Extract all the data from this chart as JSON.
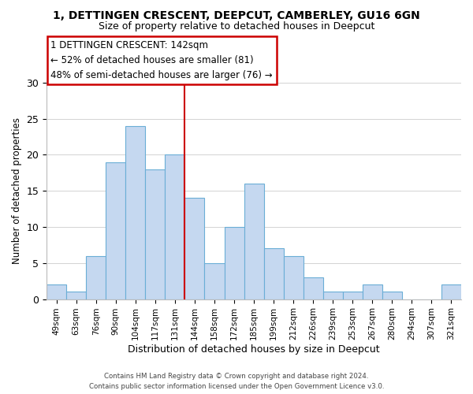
{
  "title": "1, DETTINGEN CRESCENT, DEEPCUT, CAMBERLEY, GU16 6GN",
  "subtitle": "Size of property relative to detached houses in Deepcut",
  "xlabel": "Distribution of detached houses by size in Deepcut",
  "ylabel": "Number of detached properties",
  "bar_color": "#c5d8f0",
  "bar_edge_color": "#6aaed6",
  "categories": [
    "49sqm",
    "63sqm",
    "76sqm",
    "90sqm",
    "104sqm",
    "117sqm",
    "131sqm",
    "144sqm",
    "158sqm",
    "172sqm",
    "185sqm",
    "199sqm",
    "212sqm",
    "226sqm",
    "239sqm",
    "253sqm",
    "267sqm",
    "280sqm",
    "294sqm",
    "307sqm",
    "321sqm"
  ],
  "values": [
    2,
    1,
    6,
    19,
    24,
    18,
    20,
    14,
    5,
    10,
    16,
    7,
    6,
    3,
    1,
    1,
    2,
    1,
    0,
    0,
    2
  ],
  "vline_color": "#cc0000",
  "annotation_title": "1 DETTINGEN CRESCENT: 142sqm",
  "annotation_line1": "← 52% of detached houses are smaller (81)",
  "annotation_line2": "48% of semi-detached houses are larger (76) →",
  "ylim": [
    0,
    30
  ],
  "yticks": [
    0,
    5,
    10,
    15,
    20,
    25,
    30
  ],
  "footer1": "Contains HM Land Registry data © Crown copyright and database right 2024.",
  "footer2": "Contains public sector information licensed under the Open Government Licence v3.0.",
  "background_color": "#ffffff",
  "grid_color": "#cccccc"
}
